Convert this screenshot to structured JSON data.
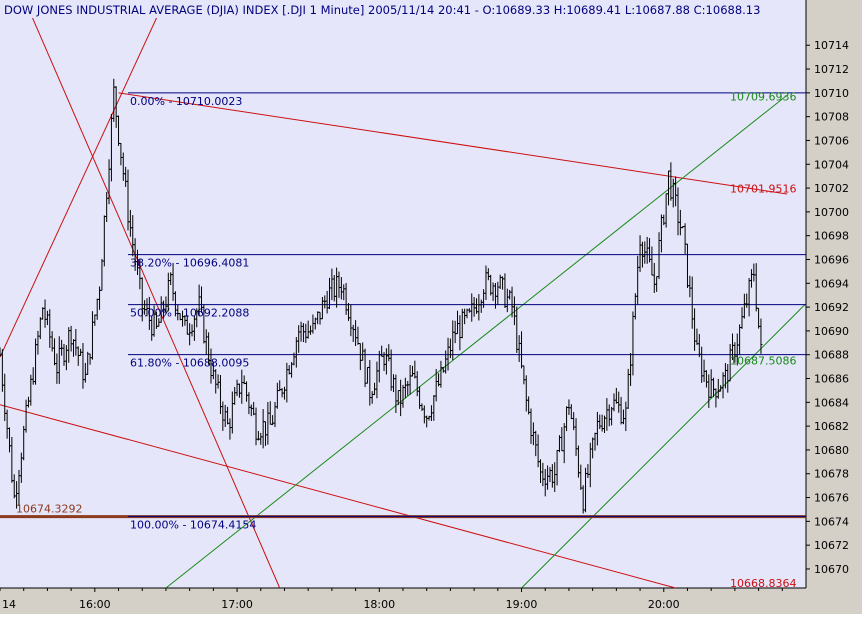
{
  "header": {
    "text": "DOW JONES INDUSTRIAL AVERAGE (DJIA) INDEX [.DJI  1 Minute] 2005/11/14 20:41 - O:10689.33 H:10689.41 L:10687.88 C:10688.13"
  },
  "colors": {
    "plot_bg": "#e6e6fa",
    "frame_bg": "#d4d0c8",
    "bars": "#000000",
    "fib": "#000080",
    "trend_red": "#cc1010",
    "channel_green": "#1a8a1a",
    "support": "#8b3a1e"
  },
  "chart_data": {
    "type": "ohlc",
    "title": "DOW JONES INDUSTRIAL AVERAGE (DJIA) INDEX [.DJI  1 Minute] 2005/11/14 20:41 - O:10689.33 H:10689.41 L:10687.88 C:10688.13",
    "x_ticks": [
      "14",
      "16:00",
      "17:00",
      "18:00",
      "19:00",
      "20:00"
    ],
    "x_start": "15:20",
    "x_end": "21:00",
    "y_ticks": [
      10670,
      10672,
      10674,
      10676,
      10678,
      10680,
      10682,
      10684,
      10686,
      10688,
      10690,
      10692,
      10694,
      10696,
      10698,
      10700,
      10702,
      10704,
      10706,
      10708,
      10710,
      10712,
      10714
    ],
    "ylim": [
      10668.4,
      10717.8
    ],
    "grid": false,
    "close_path": [
      [
        "15:20",
        10688
      ],
      [
        "15:26",
        10676
      ],
      [
        "15:32",
        10684
      ],
      [
        "15:38",
        10692
      ],
      [
        "15:44",
        10687
      ],
      [
        "15:50",
        10690
      ],
      [
        "15:56",
        10686
      ],
      [
        "16:02",
        10694
      ],
      [
        "16:08",
        10710
      ],
      [
        "16:14",
        10700
      ],
      [
        "16:20",
        10692
      ],
      [
        "16:26",
        10690
      ],
      [
        "16:32",
        10694
      ],
      [
        "16:38",
        10690
      ],
      [
        "16:44",
        10692
      ],
      [
        "16:50",
        10686
      ],
      [
        "16:56",
        10682
      ],
      [
        "17:02",
        10686
      ],
      [
        "17:08",
        10682
      ],
      [
        "17:14",
        10682
      ],
      [
        "17:20",
        10686
      ],
      [
        "17:26",
        10690
      ],
      [
        "17:32",
        10690
      ],
      [
        "17:38",
        10693
      ],
      [
        "17:44",
        10694
      ],
      [
        "17:50",
        10690
      ],
      [
        "17:56",
        10685
      ],
      [
        "18:02",
        10688
      ],
      [
        "18:08",
        10684
      ],
      [
        "18:14",
        10686
      ],
      [
        "18:20",
        10683
      ],
      [
        "18:26",
        10686
      ],
      [
        "18:32",
        10690
      ],
      [
        "18:38",
        10691
      ],
      [
        "18:44",
        10694
      ],
      [
        "18:50",
        10694
      ],
      [
        "18:56",
        10692
      ],
      [
        "19:02",
        10684
      ],
      [
        "19:08",
        10678
      ],
      [
        "19:14",
        10678
      ],
      [
        "19:20",
        10684
      ],
      [
        "19:26",
        10676
      ],
      [
        "19:32",
        10682
      ],
      [
        "19:38",
        10684
      ],
      [
        "19:44",
        10683
      ],
      [
        "19:50",
        10698
      ],
      [
        "19:56",
        10694
      ],
      [
        "20:02",
        10703
      ],
      [
        "20:08",
        10698
      ],
      [
        "20:14",
        10688
      ],
      [
        "20:20",
        10685
      ],
      [
        "20:26",
        10686
      ],
      [
        "20:32",
        10690
      ],
      [
        "20:38",
        10695
      ],
      [
        "20:41",
        10688.13
      ]
    ],
    "fibonacci": {
      "levels": [
        {
          "label": "0.00% - 10710.0023",
          "value": 10710.0023
        },
        {
          "label": "38.20% - 10696.4081",
          "value": 10696.4081
        },
        {
          "label": "50.00% - 10692.2088",
          "value": 10692.2088
        },
        {
          "label": "61.80% - 10688.0095",
          "value": 10688.0095
        },
        {
          "label": "100.00% - 10674.4154",
          "value": 10674.4154
        }
      ],
      "start": "16:14",
      "end": "21:00"
    },
    "trendlines": [
      {
        "color": "red",
        "points": [
          [
            "16:10",
            10710.0
          ],
          [
            "20:52",
            10701.5
          ]
        ],
        "label": "10701.9516"
      },
      {
        "color": "red",
        "points": [
          [
            "15:20",
            10687.8
          ],
          [
            "16:30",
            10718.0
          ]
        ],
        "label": ""
      },
      {
        "color": "red",
        "points": [
          [
            "15:30",
            10718.0
          ],
          [
            "17:18",
            10668.4
          ]
        ],
        "label": ""
      },
      {
        "color": "red",
        "points": [
          [
            "15:20",
            10683.8
          ],
          [
            "20:05",
            10668.4
          ]
        ],
        "label": "10668.8364"
      },
      {
        "color": "green",
        "points": [
          [
            "16:30",
            10668.4
          ],
          [
            "20:52",
            10709.8
          ]
        ],
        "label": "10709.6936"
      },
      {
        "color": "green",
        "points": [
          [
            "19:00",
            10668.4
          ],
          [
            "21:00",
            10692.3
          ]
        ],
        "label": "10687.5086"
      },
      {
        "color": "brown",
        "points": [
          [
            "15:20",
            10674.4
          ],
          [
            "21:00",
            10674.4
          ]
        ],
        "label": "10674.3292"
      }
    ]
  }
}
